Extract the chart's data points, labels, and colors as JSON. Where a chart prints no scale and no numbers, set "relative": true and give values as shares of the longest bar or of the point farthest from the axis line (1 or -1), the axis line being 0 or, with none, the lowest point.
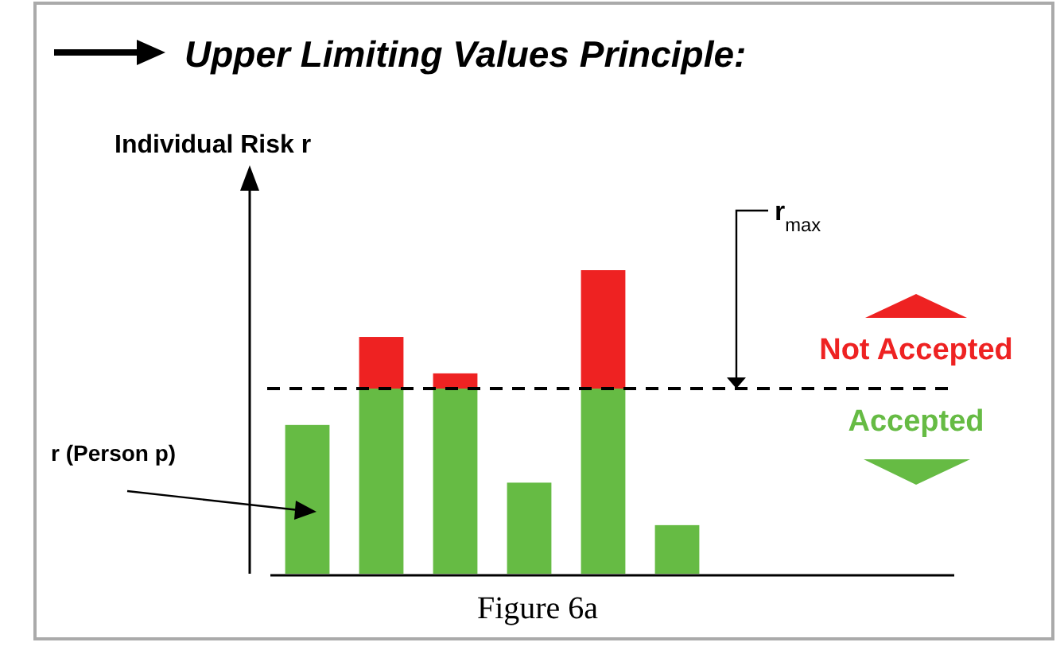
{
  "chart_data": {
    "type": "bar",
    "title": "Upper Limiting Values Principle:",
    "ylabel": "Individual Risk r",
    "categories": [
      null,
      null,
      null,
      null,
      null,
      null
    ],
    "stacked": true,
    "relative": true,
    "series": [
      {
        "color": "#66bb44",
        "values": [
          0.49,
          0.61,
          0.61,
          0.3,
          0.61,
          0.16
        ]
      },
      {
        "color": "#ee2222",
        "values": [
          0,
          0.17,
          0.05,
          0,
          0.39,
          0
        ]
      }
    ],
    "ref_lines": [
      {
        "axis": "y",
        "value": 0.61,
        "label": "r$_{max}$",
        "line_style": "dashed",
        "color": "#000000"
      }
    ],
    "annotations": [
      "Not Accepted",
      "Accepted",
      "r (Person p)",
      "Figure 6a"
    ]
  }
}
